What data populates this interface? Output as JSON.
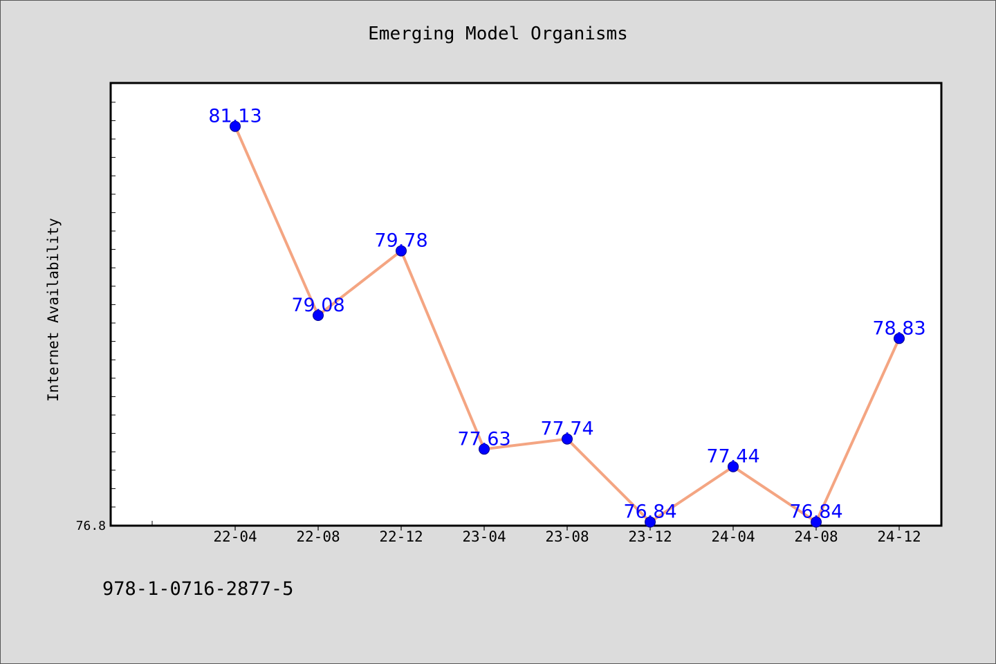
{
  "chart_data": {
    "type": "line",
    "title": "Emerging Model Organisms",
    "xlabel": "",
    "ylabel": "Internet Availability",
    "categories": [
      "22-04",
      "22-08",
      "22-12",
      "23-04",
      "23-08",
      "23-12",
      "24-04",
      "24-08",
      "24-12"
    ],
    "series": [
      {
        "values": [
          81.13,
          79.08,
          79.78,
          77.63,
          77.74,
          76.84,
          77.44,
          76.84,
          78.83
        ],
        "data_labels": [
          "81.13",
          "79.08",
          "79.78",
          "77.63",
          "77.74",
          "76.84",
          "77.44",
          "76.84",
          "78.83"
        ]
      }
    ],
    "y_tick_labels": [
      "76.8"
    ],
    "ylim": [
      76.8,
      81.6
    ],
    "grid": false,
    "legend": "none"
  },
  "colors": {
    "line": "#f4a582",
    "marker": "#0000ff",
    "data_label": "#0000ff",
    "plot_background": "#ffffff",
    "page_background": "#dcdcdc"
  },
  "footer": {
    "code": "978-1-0716-2877-5"
  }
}
